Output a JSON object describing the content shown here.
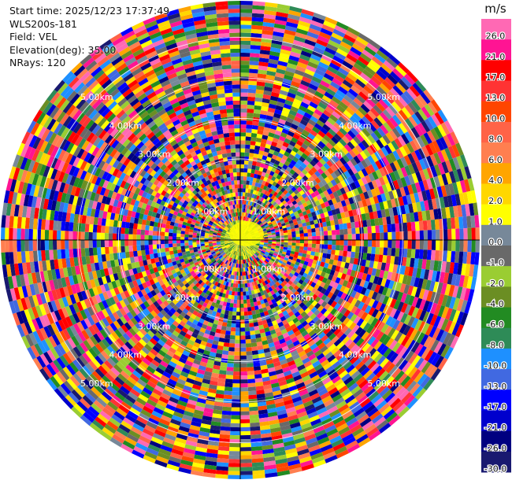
{
  "info": {
    "start_time": "Start time: 2025/12/23 17:37:49",
    "instrument": "WLS200s-181",
    "field": "Field: VEL",
    "elevation": "Elevation(deg): 35.00",
    "nrays": "NRays: 120"
  },
  "chart_data": {
    "type": "heatmap",
    "projection": "polar-ppi",
    "field": "VEL",
    "unit_label": "m/s",
    "nrays": 120,
    "elevation_deg": 35.0,
    "range_rings": [
      "1.00km",
      "2.00km",
      "3.00km",
      "4.00km",
      "5.00km"
    ],
    "ring_label_azimuths_deg": [
      -45,
      45,
      135,
      -135
    ],
    "colorbar": {
      "levels": [
        "26.0",
        "21.0",
        "17.0",
        "13.0",
        "10.0",
        "8.0",
        "6.0",
        "4.0",
        "2.0",
        "1.0",
        "0.0",
        "-1.0",
        "-2.0",
        "-4.0",
        "-6.0",
        "-8.0",
        "-10.0",
        "-13.0",
        "-17.0",
        "-21.0",
        "-26.0",
        "-30.0"
      ],
      "colors": [
        "#ff69b4",
        "#ff1493",
        "#ff0000",
        "#ff3333",
        "#ff4500",
        "#ff6347",
        "#ff7f50",
        "#ffa500",
        "#ffd700",
        "#ffff00",
        "#778899",
        "#696969",
        "#9acd32",
        "#6b8e23",
        "#228b22",
        "#2e8b57",
        "#1e90ff",
        "#4169e1",
        "#0000ff",
        "#0000cd",
        "#000080",
        "#191970"
      ]
    }
  }
}
